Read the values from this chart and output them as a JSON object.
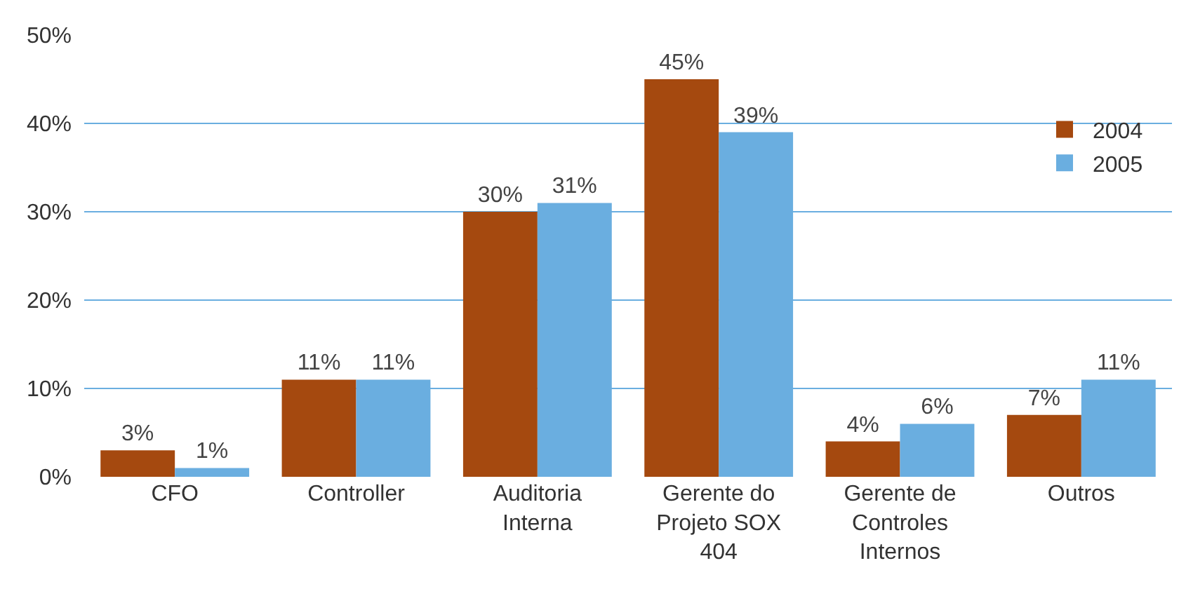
{
  "chart_data": {
    "type": "bar",
    "categories": [
      "CFO",
      "Controller",
      "Auditoria Interna",
      "Gerente do Projeto SOX 404",
      "Gerente de Controles Internos",
      "Outros"
    ],
    "series": [
      {
        "name": "2004",
        "color": "#a5490f",
        "values": [
          3,
          11,
          30,
          45,
          4,
          7
        ],
        "value_labels": [
          "3%",
          "11%",
          "30%",
          "45%",
          "4%",
          "7%"
        ]
      },
      {
        "name": "2005",
        "color": "#6aaee0",
        "values": [
          1,
          11,
          31,
          39,
          6,
          11
        ],
        "value_labels": [
          "1%",
          "11%",
          "31%",
          "39%",
          "6%",
          "11%"
        ]
      }
    ],
    "ylim": [
      0,
      50
    ],
    "yticks": [
      {
        "value": 0,
        "label": "0%"
      },
      {
        "value": 10,
        "label": "10%"
      },
      {
        "value": 20,
        "label": "20%"
      },
      {
        "value": 30,
        "label": "30%"
      },
      {
        "value": 40,
        "label": "40%"
      },
      {
        "value": 50,
        "label": "50%"
      }
    ],
    "grid": "y",
    "legend": "top right"
  }
}
